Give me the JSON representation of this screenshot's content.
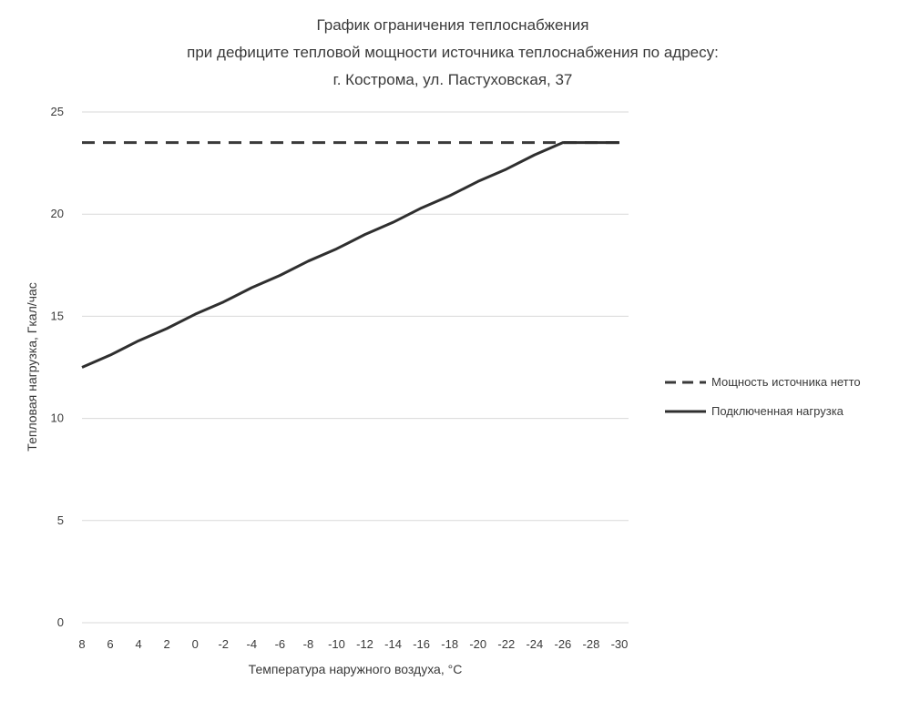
{
  "chart_data": {
    "type": "line",
    "title": [
      "График ограничения теплоснабжения",
      "при дефиците тепловой мощности источника теплоснабжения по адресу:",
      "г. Кострома, ул. Пастуховская, 37"
    ],
    "xlabel": "Температура наружного воздуха, °С",
    "ylabel": "Тепловая нагрузка, Гкал/час",
    "categories": [
      "8",
      "6",
      "4",
      "2",
      "0",
      "-2",
      "-4",
      "-6",
      "-8",
      "-10",
      "-12",
      "-14",
      "-16",
      "-18",
      "-20",
      "-22",
      "-24",
      "-26",
      "-28",
      "-30"
    ],
    "x": [
      8,
      6,
      4,
      2,
      0,
      -2,
      -4,
      -6,
      -8,
      -10,
      -12,
      -14,
      -16,
      -18,
      -20,
      -22,
      -24,
      -26,
      -28,
      -30
    ],
    "ylim": [
      0,
      25
    ],
    "yticks": [
      0,
      5,
      10,
      15,
      20,
      25
    ],
    "grid": true,
    "legend_position": "right",
    "series": [
      {
        "name": "Мощность источника нетто",
        "style": "dashed",
        "color": "#3a3a3a",
        "values": [
          23.5,
          23.5,
          23.5,
          23.5,
          23.5,
          23.5,
          23.5,
          23.5,
          23.5,
          23.5,
          23.5,
          23.5,
          23.5,
          23.5,
          23.5,
          23.5,
          23.5,
          23.5,
          23.5,
          23.5
        ]
      },
      {
        "name": "Подключенная нагрузка",
        "style": "solid",
        "color": "#2f2f2f",
        "values": [
          12.5,
          13.1,
          13.8,
          14.4,
          15.1,
          15.7,
          16.4,
          17.0,
          17.7,
          18.3,
          19.0,
          19.6,
          20.3,
          20.9,
          21.6,
          22.2,
          22.9,
          23.5,
          23.5,
          23.5
        ]
      }
    ]
  }
}
